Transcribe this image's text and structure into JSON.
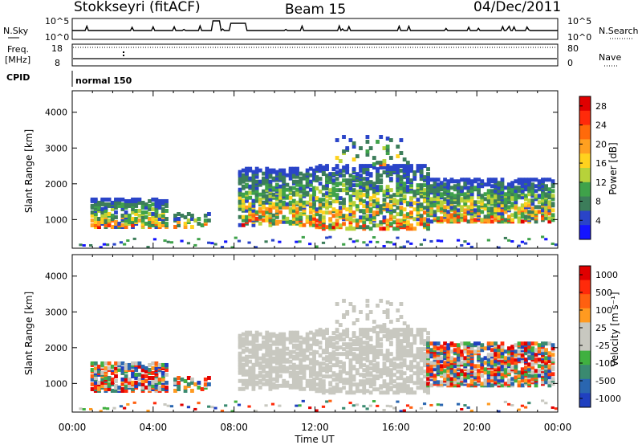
{
  "header": {
    "station": "Stokkseyri (fitACF)",
    "beam": "Beam 15",
    "date": "04/Dec/2011"
  },
  "noise_panel": {
    "left_label": "N.Sky",
    "right_label": "N.Search",
    "left_ticks": [
      "10^5",
      "10^0"
    ],
    "right_ticks": [
      "10^5",
      "10^0"
    ]
  },
  "freq_panel": {
    "left_label_line1": "Freq.",
    "left_label_line2": "[MHz]",
    "right_label": "Nave",
    "left_ticks": [
      "18",
      "8"
    ],
    "right_ticks": [
      "80",
      "0"
    ]
  },
  "cpid_panel": {
    "label": "CPID",
    "mode": "normal 150"
  },
  "colors": {
    "power_scale": [
      "#1414ff",
      "#2a44c8",
      "#3c7d5a",
      "#3fa24a",
      "#b7d23a",
      "#ffd21e",
      "#ffa020",
      "#ff6a0a",
      "#ff2a0a",
      "#e00000"
    ],
    "velocity_scale": [
      "#2040c0",
      "#2a66b0",
      "#3a8a70",
      "#40b040",
      "#c8c8c0",
      "#c8c8c0",
      "#ff9a20",
      "#ff6010",
      "#ff2a0a",
      "#e00000"
    ]
  },
  "chart_data": [
    {
      "type": "heatmap",
      "name": "power",
      "ylabel": "Slant Range [km]",
      "xlabel": "Time UT",
      "x_ticks": [
        "00:00",
        "04:00",
        "08:00",
        "12:00",
        "16:00",
        "20:00",
        "00:00"
      ],
      "y_ticks": [
        "1000",
        "2000",
        "3000",
        "4000"
      ],
      "ylim": [
        200,
        4600
      ],
      "xlim_hours": [
        0,
        24
      ],
      "colorbar_label": "Power [dB]",
      "colorbar_ticks": [
        "4",
        "8",
        "12",
        "16",
        "20",
        "24",
        "28"
      ],
      "colorbar_range": [
        0,
        30
      ]
    },
    {
      "type": "heatmap",
      "name": "velocity",
      "ylabel": "Slant Range [km]",
      "xlabel": "Time UT",
      "x_ticks": [
        "00:00",
        "04:00",
        "08:00",
        "12:00",
        "16:00",
        "20:00",
        "00:00"
      ],
      "y_ticks": [
        "1000",
        "2000",
        "3000",
        "4000"
      ],
      "ylim": [
        200,
        4600
      ],
      "xlim_hours": [
        0,
        24
      ],
      "colorbar_label": "Velocity [m s⁻¹]",
      "colorbar_ticks": [
        "1000",
        "500",
        "100",
        "25",
        "-25",
        "-100",
        "-500",
        "-1000"
      ]
    }
  ]
}
